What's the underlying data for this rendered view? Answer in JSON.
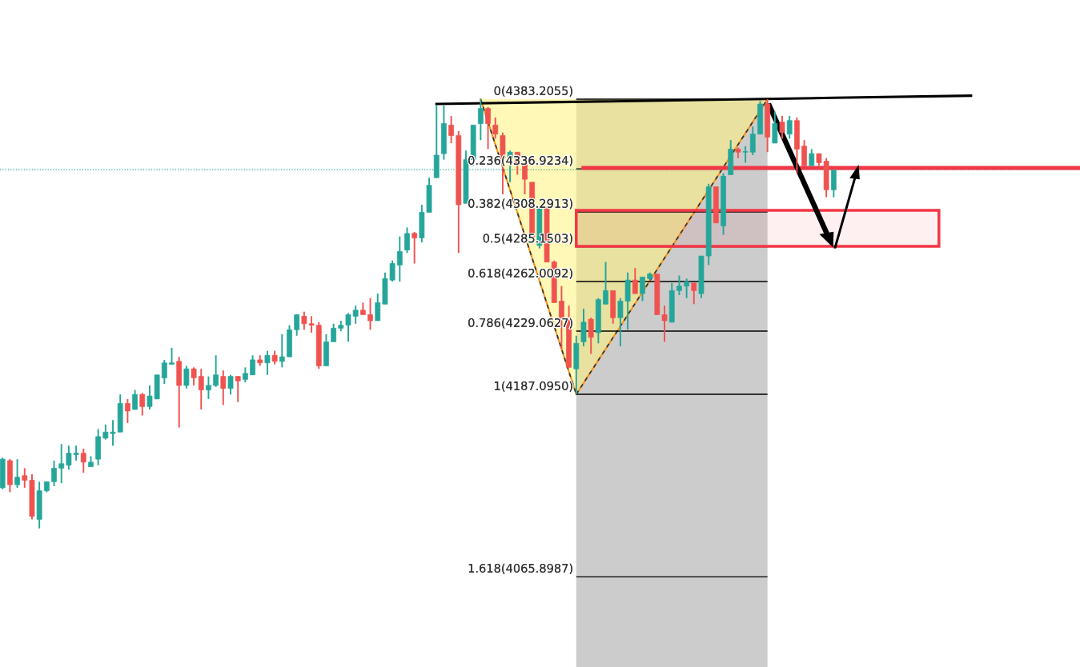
{
  "chart_data": {
    "type": "candlestick",
    "categories": [
      null,
      null,
      null,
      null,
      null,
      null,
      null,
      null,
      null,
      null,
      null,
      null,
      null,
      null,
      null,
      null,
      null,
      null,
      null,
      null,
      null,
      null,
      null,
      null,
      null,
      null,
      null,
      null,
      null,
      null,
      null,
      null,
      null,
      null,
      null,
      null,
      null,
      null,
      null,
      null,
      null,
      null,
      null,
      null,
      null,
      null,
      null,
      null,
      null,
      null,
      null,
      null,
      null,
      null,
      null,
      null,
      null,
      null,
      null,
      null,
      null,
      null,
      null,
      null,
      null,
      null,
      null,
      null,
      null,
      null,
      null,
      null,
      null,
      null,
      null,
      null,
      null,
      null,
      null,
      null,
      null,
      null,
      null,
      null,
      null,
      null,
      null,
      null,
      null,
      null,
      null,
      null,
      null,
      null,
      null,
      null,
      null,
      null,
      null,
      null,
      null,
      null,
      null,
      null,
      null,
      null,
      null,
      null,
      null,
      null,
      null,
      null,
      null,
      null
    ],
    "ohlc": [
      [
        4125,
        4145,
        4124,
        4144
      ],
      [
        4143,
        4144,
        4122,
        4127
      ],
      [
        4127,
        4144,
        4125,
        4132
      ],
      [
        4133,
        4138,
        4125,
        4130
      ],
      [
        4130,
        4134,
        4104,
        4106
      ],
      [
        4104,
        4129,
        4098,
        4123
      ],
      [
        4123,
        4129,
        4122,
        4129
      ],
      [
        4129,
        4143,
        4126,
        4138
      ],
      [
        4138,
        4154,
        4128,
        4141
      ],
      [
        4140,
        4153,
        4137,
        4148
      ],
      [
        4147,
        4153,
        4143,
        4148
      ],
      [
        4148,
        4151,
        4135,
        4142
      ],
      [
        4139,
        4146,
        4139,
        4142
      ],
      [
        4144,
        4164,
        4140,
        4159
      ],
      [
        4158,
        4167,
        4157,
        4162
      ],
      [
        4161,
        4170,
        4153,
        4162
      ],
      [
        4162,
        4187,
        4162,
        4181
      ],
      [
        4181,
        4184,
        4168,
        4176
      ],
      [
        4177,
        4190,
        4177,
        4187
      ],
      [
        4187,
        4188,
        4173,
        4179
      ],
      [
        4179,
        4193,
        4177,
        4186
      ],
      [
        4184,
        4200,
        4184,
        4200
      ],
      [
        4198,
        4210,
        4194,
        4208
      ],
      [
        4207,
        4218,
        4207,
        4208
      ],
      [
        4209,
        4212,
        4165,
        4193
      ],
      [
        4193,
        4206,
        4191,
        4204
      ],
      [
        4204,
        4205,
        4193,
        4198
      ],
      [
        4199,
        4204,
        4177,
        4190
      ],
      [
        4190,
        4199,
        4184,
        4193
      ],
      [
        4193,
        4213,
        4192,
        4200
      ],
      [
        4199,
        4203,
        4180,
        4191
      ],
      [
        4191,
        4200,
        4187,
        4199
      ],
      [
        4199,
        4199,
        4182,
        4196
      ],
      [
        4197,
        4205,
        4195,
        4201
      ],
      [
        4200,
        4213,
        4200,
        4210
      ],
      [
        4210,
        4213,
        4206,
        4208
      ],
      [
        4208,
        4216,
        4200,
        4213
      ],
      [
        4213,
        4216,
        4207,
        4209
      ],
      [
        4209,
        4227,
        4205,
        4212
      ],
      [
        4212,
        4233,
        4212,
        4230
      ],
      [
        4230,
        4240,
        4226,
        4240
      ],
      [
        4239,
        4242,
        4230,
        4234
      ],
      [
        4234,
        4239,
        4228,
        4233
      ],
      [
        4233,
        4235,
        4204,
        4206
      ],
      [
        4206,
        4227,
        4206,
        4222
      ],
      [
        4222,
        4234,
        4222,
        4231
      ],
      [
        4231,
        4236,
        4229,
        4233
      ],
      [
        4233,
        4241,
        4222,
        4240
      ],
      [
        4239,
        4246,
        4234,
        4243
      ],
      [
        4243,
        4248,
        4240,
        4240
      ],
      [
        4240,
        4251,
        4230,
        4236
      ],
      [
        4236,
        4254,
        4236,
        4248
      ],
      [
        4247,
        4268,
        4247,
        4264
      ],
      [
        4263,
        4276,
        4262,
        4274
      ],
      [
        4273,
        4292,
        4262,
        4282
      ],
      [
        4283,
        4298,
        4281,
        4294
      ],
      [
        4294,
        4295,
        4274,
        4291
      ],
      [
        4291,
        4313,
        4288,
        4308
      ],
      [
        4308,
        4331,
        4308,
        4326
      ],
      [
        4331,
        4379,
        4331,
        4346
      ],
      [
        4347,
        4379,
        4343,
        4367
      ],
      [
        4366,
        4372,
        4354,
        4359
      ],
      [
        4359,
        4362,
        4281,
        4313
      ],
      [
        4314,
        4349,
        4314,
        4343
      ],
      [
        4343,
        4366,
        4339,
        4366
      ],
      [
        4367,
        4383.2,
        4356,
        4377
      ],
      [
        4377,
        4378,
        4350,
        4367
      ],
      [
        4366,
        4371,
        4357,
        4360
      ],
      [
        4359,
        4361,
        4320,
        4344
      ],
      [
        4344,
        4349,
        4328,
        4348
      ],
      [
        4348,
        4348,
        4333,
        4340
      ],
      [
        4340,
        4341,
        4320,
        4330
      ],
      [
        4328,
        4328,
        4291,
        4291
      ],
      [
        4286,
        4312,
        4284,
        4311
      ],
      [
        4311,
        4312,
        4275,
        4275
      ],
      [
        4275,
        4276,
        4248,
        4248
      ],
      [
        4249,
        4259,
        4217,
        4238
      ],
      [
        4238,
        4246,
        4205,
        4205
      ],
      [
        4204,
        4226,
        4187.1,
        4221
      ],
      [
        4222,
        4244,
        4219,
        4235
      ],
      [
        4237,
        4238,
        4214,
        4225
      ],
      [
        4228,
        4251,
        4221,
        4250
      ],
      [
        4247,
        4275,
        4247,
        4256
      ],
      [
        4256,
        4256,
        4234,
        4238
      ],
      [
        4238,
        4251,
        4219,
        4249
      ],
      [
        4249,
        4268,
        4230,
        4263
      ],
      [
        4263,
        4271,
        4254,
        4254
      ],
      [
        4254,
        4265,
        4249,
        4265
      ],
      [
        4264,
        4268,
        4263,
        4267
      ],
      [
        4267,
        4267,
        4240,
        4240
      ],
      [
        4240,
        4246,
        4222,
        4236
      ],
      [
        4235,
        4261,
        4235,
        4256
      ],
      [
        4256,
        4266,
        4253,
        4259
      ],
      [
        4259,
        4264,
        4251,
        4262
      ],
      [
        4261,
        4261,
        4247,
        4256
      ],
      [
        4254,
        4279,
        4251,
        4279
      ],
      [
        4279,
        4327,
        4273,
        4325
      ],
      [
        4325,
        4325,
        4301,
        4301
      ],
      [
        4299,
        4334,
        4293,
        4332
      ],
      [
        4333,
        4356,
        4333,
        4350
      ],
      [
        4350,
        4351,
        4344,
        4348
      ],
      [
        4348,
        4352,
        4341,
        4348
      ],
      [
        4348,
        4365,
        4346,
        4360
      ],
      [
        4360,
        4382,
        4360,
        4380
      ],
      [
        4380,
        4383.2,
        4348,
        4358
      ],
      [
        4354,
        4375,
        4354,
        4367
      ],
      [
        4368,
        4372,
        4357,
        4361
      ],
      [
        4360,
        4372,
        4357,
        4369
      ],
      [
        4369,
        4371,
        4334,
        4350
      ],
      [
        4352,
        4356,
        4339,
        4339
      ],
      [
        4339,
        4350,
        4339,
        4347
      ],
      [
        4347,
        4347,
        4339,
        4341
      ],
      [
        4342,
        4344,
        4318,
        4323
      ],
      [
        4323,
        4336,
        4318,
        4336
      ]
    ],
    "colors": [
      "#26a69a",
      "#ef5350",
      "#26a69a",
      "#ef5350",
      "#ef5350",
      "#26a69a",
      "#26a69a",
      "#26a69a",
      "#26a69a",
      "#26a69a",
      "#26a69a",
      "#ef5350",
      "#26a69a",
      "#26a69a",
      "#26a69a",
      "#26a69a",
      "#26a69a",
      "#ef5350",
      "#26a69a",
      "#ef5350",
      "#26a69a",
      "#26a69a",
      "#26a69a",
      "#26a69a",
      "#ef5350",
      "#26a69a",
      "#ef5350",
      "#ef5350",
      "#26a69a",
      "#26a69a",
      "#ef5350",
      "#26a69a",
      "#ef5350",
      "#26a69a",
      "#26a69a",
      "#ef5350",
      "#26a69a",
      "#ef5350",
      "#26a69a",
      "#26a69a",
      "#26a69a",
      "#ef5350",
      "#ef5350",
      "#ef5350",
      "#26a69a",
      "#26a69a",
      "#26a69a",
      "#26a69a",
      "#26a69a",
      "#ef5350",
      "#ef5350",
      "#26a69a",
      "#26a69a",
      "#26a69a",
      "#26a69a",
      "#26a69a",
      "#ef5350",
      "#26a69a",
      "#26a69a",
      "#26a69a",
      "#26a69a",
      "#ef5350",
      "#ef5350",
      "#26a69a",
      "#26a69a",
      "#26a69a",
      "#ef5350",
      "#ef5350",
      "#ef5350",
      "#26a69a",
      "#ef5350",
      "#ef5350",
      "#ef5350",
      "#26a69a",
      "#ef5350",
      "#ef5350",
      "#ef5350",
      "#ef5350",
      "#26a69a",
      "#26a69a",
      "#ef5350",
      "#26a69a",
      "#26a69a",
      "#ef5350",
      "#26a69a",
      "#26a69a",
      "#ef5350",
      "#26a69a",
      "#26a69a",
      "#ef5350",
      "#ef5350",
      "#26a69a",
      "#26a69a",
      "#26a69a",
      "#ef5350",
      "#26a69a",
      "#26a69a",
      "#ef5350",
      "#26a69a",
      "#26a69a",
      "#ef5350",
      "#26a69a",
      "#26a69a",
      "#26a69a",
      "#ef5350",
      "#26a69a",
      "#ef5350",
      "#26a69a",
      "#ef5350",
      "#ef5350",
      "#26a69a",
      "#ef5350",
      "#ef5350",
      "#26a69a"
    ],
    "series": [
      {
        "type": "line",
        "color": "#000000",
        "values": [
          null,
          null,
          null,
          null,
          null,
          null,
          null,
          null,
          null,
          null,
          null,
          null,
          null,
          null,
          null,
          null,
          null,
          null,
          null,
          null,
          null,
          null,
          null,
          null,
          null,
          null,
          null,
          null,
          null,
          null,
          null,
          null,
          null,
          null,
          null,
          null,
          null,
          null,
          null,
          null,
          null,
          null,
          null,
          null,
          null,
          null,
          null,
          null,
          null,
          null,
          null,
          null,
          null,
          null,
          null,
          null,
          null,
          null,
          null,
          4380.0,
          null,
          null,
          null,
          null,
          null,
          null,
          null,
          null,
          null,
          null,
          null,
          null,
          null,
          null,
          null,
          null,
          null,
          null,
          null,
          null,
          null,
          null,
          null,
          null,
          null,
          null,
          null,
          null,
          null,
          null,
          null,
          null,
          null,
          null,
          null,
          null,
          null,
          null,
          null,
          null,
          null,
          null,
          null,
          null,
          null,
          null,
          null,
          null,
          null,
          null,
          null,
          null,
          null,
          4384.1
        ]
      }
    ],
    "ylim": [
      4005.9,
      4449.1
    ],
    "ref_lines": [
      {
        "axis": "y",
        "value": 4383.2055,
        "label": "0(4383.2055)",
        "color": "#000000"
      },
      {
        "axis": "y",
        "value": 4336.9234,
        "label": "0.236(4336.9234)",
        "color": "#000000"
      },
      {
        "axis": "y",
        "value": 4308.2913,
        "label": "0.382(4308.2913)",
        "color": "#000000"
      },
      {
        "axis": "y",
        "value": 4285.1503,
        "label": "0.5(4285.1503)",
        "color": "#000000"
      },
      {
        "axis": "y",
        "value": 4262.0092,
        "label": "0.618(4262.0092)",
        "color": "#000000"
      },
      {
        "axis": "y",
        "value": 4229.0627,
        "label": "0.786(4229.0627)",
        "color": "#000000"
      },
      {
        "axis": "y",
        "value": 4187.095,
        "label": "1(4187.0950)",
        "color": "#000000"
      },
      {
        "axis": "y",
        "value": 4065.8987,
        "label": "1.618(4065.8987)",
        "color": "#000000"
      },
      {
        "axis": "y",
        "value": 4337.5,
        "color": "#f23645",
        "line_style": "solid"
      },
      {
        "axis": "y",
        "value": 4336.4,
        "color": "#26a69a",
        "line_style": "dotted"
      }
    ],
    "bands": [
      {
        "axis": "y",
        "from": 4285.4,
        "to": 4309.3,
        "color": "#f23645"
      }
    ]
  }
}
